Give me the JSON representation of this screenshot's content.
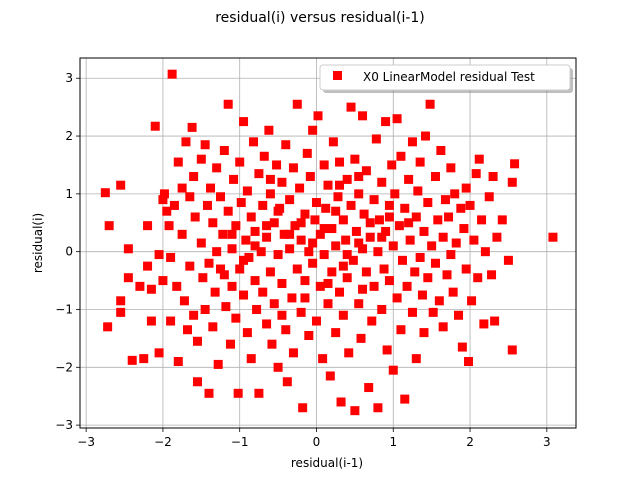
{
  "chart_data": {
    "type": "scatter",
    "title": "residual(i) versus residual(i-1)",
    "xlabel": "residual(i-1)",
    "ylabel": "residual(i)",
    "xlim": [
      -3.08,
      3.38
    ],
    "ylim": [
      -3.05,
      3.35
    ],
    "xticks": [
      -3,
      -2,
      -1,
      0,
      1,
      2,
      3
    ],
    "xtick_labels": [
      "−3",
      "−2",
      "−1",
      "0",
      "1",
      "2",
      "3"
    ],
    "yticks": [
      -3,
      -2,
      -1,
      0,
      1,
      2,
      3
    ],
    "ytick_labels": [
      "−3",
      "−2",
      "−1",
      "0",
      "1",
      "2",
      "3"
    ],
    "grid": true,
    "legend_position": "upper right",
    "marker": "square",
    "series": [
      {
        "name": "X0 LinearModel residual Test",
        "color": "#ff0000",
        "points": [
          [
            -2.75,
            1.02
          ],
          [
            -2.7,
            0.45
          ],
          [
            -2.72,
            -1.3
          ],
          [
            -2.55,
            -1.05
          ],
          [
            -2.55,
            -0.85
          ],
          [
            -2.55,
            1.15
          ],
          [
            -2.45,
            0.05
          ],
          [
            -2.45,
            -0.45
          ],
          [
            -2.4,
            -1.88
          ],
          [
            -2.3,
            -0.6
          ],
          [
            -2.25,
            -1.85
          ],
          [
            -2.2,
            0.45
          ],
          [
            -2.2,
            -0.25
          ],
          [
            -2.15,
            -0.65
          ],
          [
            -2.15,
            -1.2
          ],
          [
            -2.1,
            2.17
          ],
          [
            -2.05,
            -0.05
          ],
          [
            -2.05,
            -1.75
          ],
          [
            -2.0,
            -0.5
          ],
          [
            -2.0,
            0.9
          ],
          [
            -1.98,
            1.0
          ],
          [
            -1.95,
            0.7
          ],
          [
            -1.92,
            0.45
          ],
          [
            -1.9,
            -0.1
          ],
          [
            -1.9,
            -1.2
          ],
          [
            -1.88,
            3.07
          ],
          [
            -1.85,
            0.8
          ],
          [
            -1.82,
            -0.6
          ],
          [
            -1.8,
            1.55
          ],
          [
            -1.8,
            -1.9
          ],
          [
            -1.75,
            1.1
          ],
          [
            -1.75,
            0.3
          ],
          [
            -1.72,
            -0.85
          ],
          [
            -1.7,
            1.9
          ],
          [
            -1.68,
            -1.35
          ],
          [
            -1.65,
            0.95
          ],
          [
            -1.65,
            -0.25
          ],
          [
            -1.62,
            2.15
          ],
          [
            -1.6,
            1.3
          ],
          [
            -1.6,
            -1.1
          ],
          [
            -1.58,
            0.6
          ],
          [
            -1.55,
            -1.55
          ],
          [
            -1.55,
            -2.25
          ],
          [
            -1.5,
            1.6
          ],
          [
            -1.5,
            0.15
          ],
          [
            -1.48,
            -0.45
          ],
          [
            -1.45,
            1.85
          ],
          [
            -1.45,
            -1.0
          ],
          [
            -1.42,
            0.8
          ],
          [
            -1.4,
            -0.2
          ],
          [
            -1.4,
            -2.45
          ],
          [
            -1.38,
            1.1
          ],
          [
            -1.35,
            0.5
          ],
          [
            -1.35,
            -1.3
          ],
          [
            -1.32,
            -0.7
          ],
          [
            -1.3,
            1.45
          ],
          [
            -1.3,
            0.0
          ],
          [
            -1.28,
            -1.95
          ],
          [
            -1.25,
            0.95
          ],
          [
            -1.22,
            0.3
          ],
          [
            -1.2,
            -0.4
          ],
          [
            -1.2,
            1.75
          ],
          [
            -1.18,
            -0.95
          ],
          [
            -1.15,
            2.55
          ],
          [
            -1.15,
            0.7
          ],
          [
            -1.12,
            -1.6
          ],
          [
            -1.1,
            0.05
          ],
          [
            -1.1,
            -0.6
          ],
          [
            -1.08,
            1.25
          ],
          [
            -1.05,
            -1.15
          ],
          [
            -1.05,
            0.45
          ],
          [
            -1.02,
            -2.45
          ],
          [
            -1.0,
            1.55
          ],
          [
            -1.0,
            -0.3
          ],
          [
            -0.98,
            0.85
          ],
          [
            -0.95,
            2.25
          ],
          [
            -0.95,
            -0.75
          ],
          [
            -0.92,
            0.2
          ],
          [
            -0.9,
            -1.4
          ],
          [
            -0.9,
            1.05
          ],
          [
            -0.88,
            -0.1
          ],
          [
            -0.85,
            0.6
          ],
          [
            -0.85,
            -1.85
          ],
          [
            -0.82,
            1.9
          ],
          [
            -0.8,
            -0.5
          ],
          [
            -0.8,
            0.35
          ],
          [
            -0.78,
            -1.0
          ],
          [
            -0.75,
            1.35
          ],
          [
            -0.75,
            -2.45
          ],
          [
            -0.72,
            0.0
          ],
          [
            -0.7,
            0.8
          ],
          [
            -0.7,
            -0.7
          ],
          [
            -0.68,
            1.65
          ],
          [
            -0.65,
            -1.25
          ],
          [
            -0.65,
            0.25
          ],
          [
            -0.62,
            2.1
          ],
          [
            -0.6,
            -0.35
          ],
          [
            -0.6,
            1.0
          ],
          [
            -0.58,
            -1.6
          ],
          [
            -0.55,
            0.5
          ],
          [
            -0.55,
            -0.9
          ],
          [
            -0.52,
            1.5
          ],
          [
            -0.5,
            -0.05
          ],
          [
            -0.5,
            -2.0
          ],
          [
            -0.48,
            0.75
          ],
          [
            -0.45,
            1.2
          ],
          [
            -0.45,
            -0.55
          ],
          [
            -0.42,
            0.3
          ],
          [
            -0.4,
            -1.35
          ],
          [
            -0.4,
            1.85
          ],
          [
            -0.38,
            -2.25
          ],
          [
            -0.35,
            0.05
          ],
          [
            -0.35,
            0.9
          ],
          [
            -0.32,
            -0.8
          ],
          [
            -0.3,
            1.45
          ],
          [
            -0.3,
            -1.75
          ],
          [
            -0.28,
            0.45
          ],
          [
            -0.25,
            -0.3
          ],
          [
            -0.25,
            2.55
          ],
          [
            -0.22,
            1.1
          ],
          [
            -0.2,
            -1.05
          ],
          [
            -0.2,
            0.2
          ],
          [
            -0.18,
            -2.7
          ],
          [
            -0.15,
            0.65
          ],
          [
            -0.15,
            -0.5
          ],
          [
            -0.12,
            1.7
          ],
          [
            -0.1,
            -1.45
          ],
          [
            -0.1,
            0.0
          ],
          [
            -0.08,
            1.3
          ],
          [
            -0.05,
            -0.2
          ],
          [
            -0.05,
            2.1
          ],
          [
            -0.02,
            0.55
          ],
          [
            0.0,
            -1.2
          ],
          [
            0.0,
            0.85
          ],
          [
            0.02,
            2.35
          ],
          [
            0.05,
            -0.6
          ],
          [
            0.05,
            0.3
          ],
          [
            0.08,
            -1.85
          ],
          [
            0.1,
            1.5
          ],
          [
            0.1,
            -0.05
          ],
          [
            0.12,
            0.75
          ],
          [
            0.15,
            -0.9
          ],
          [
            0.15,
            1.15
          ],
          [
            0.18,
            -2.15
          ],
          [
            0.2,
            0.4
          ],
          [
            0.2,
            -0.35
          ],
          [
            0.22,
            1.9
          ],
          [
            0.25,
            -1.4
          ],
          [
            0.25,
            0.1
          ],
          [
            0.28,
            0.95
          ],
          [
            0.3,
            -0.7
          ],
          [
            0.3,
            1.55
          ],
          [
            0.32,
            -2.6
          ],
          [
            0.35,
            0.55
          ],
          [
            0.35,
            -1.1
          ],
          [
            0.38,
            0.2
          ],
          [
            0.4,
            1.25
          ],
          [
            0.4,
            -0.45
          ],
          [
            0.42,
            -1.75
          ],
          [
            0.45,
            0.8
          ],
          [
            0.45,
            2.5
          ],
          [
            0.48,
            -0.15
          ],
          [
            0.5,
            1.6
          ],
          [
            0.5,
            -2.75
          ],
          [
            0.52,
            0.35
          ],
          [
            0.55,
            -0.9
          ],
          [
            0.55,
            1.0
          ],
          [
            0.58,
            -1.5
          ],
          [
            0.6,
            0.05
          ],
          [
            0.6,
            2.35
          ],
          [
            0.62,
            0.65
          ],
          [
            0.65,
            -0.35
          ],
          [
            0.65,
            1.4
          ],
          [
            0.68,
            -2.35
          ],
          [
            0.7,
            0.25
          ],
          [
            0.72,
            -1.2
          ],
          [
            0.75,
            0.9
          ],
          [
            0.75,
            -0.6
          ],
          [
            0.78,
            1.95
          ],
          [
            0.8,
            0.0
          ],
          [
            0.8,
            -2.7
          ],
          [
            0.82,
            0.55
          ],
          [
            0.85,
            -1.0
          ],
          [
            0.85,
            1.2
          ],
          [
            0.88,
            -0.3
          ],
          [
            0.9,
            2.25
          ],
          [
            0.9,
            0.35
          ],
          [
            0.92,
            -1.7
          ],
          [
            0.95,
            0.8
          ],
          [
            0.95,
            -0.5
          ],
          [
            0.98,
            1.5
          ],
          [
            1.0,
            -2.05
          ],
          [
            1.0,
            0.1
          ],
          [
            1.02,
            1.0
          ],
          [
            1.05,
            -0.8
          ],
          [
            1.05,
            2.3
          ],
          [
            1.08,
            0.45
          ],
          [
            1.1,
            -1.35
          ],
          [
            1.1,
            1.65
          ],
          [
            1.12,
            -0.15
          ],
          [
            1.15,
            -2.55
          ],
          [
            1.15,
            0.75
          ],
          [
            1.18,
            -0.6
          ],
          [
            1.2,
            1.25
          ],
          [
            1.22,
            0.2
          ],
          [
            1.25,
            -1.05
          ],
          [
            1.25,
            1.9
          ],
          [
            1.28,
            -0.35
          ],
          [
            1.3,
            0.6
          ],
          [
            1.3,
            -1.85
          ],
          [
            1.32,
            1.05
          ],
          [
            1.35,
            -0.1
          ],
          [
            1.35,
            1.55
          ],
          [
            1.38,
            -0.75
          ],
          [
            1.4,
            0.35
          ],
          [
            1.4,
            -1.4
          ],
          [
            1.42,
            2.0
          ],
          [
            1.45,
            0.85
          ],
          [
            1.45,
            -0.45
          ],
          [
            1.48,
            2.55
          ],
          [
            1.5,
            0.1
          ],
          [
            1.52,
            -1.05
          ],
          [
            1.55,
            1.3
          ],
          [
            1.55,
            -0.2
          ],
          [
            1.58,
            0.55
          ],
          [
            1.6,
            -0.85
          ],
          [
            1.62,
            1.75
          ],
          [
            1.65,
            0.25
          ],
          [
            1.65,
            -1.3
          ],
          [
            1.68,
            0.9
          ],
          [
            1.7,
            -0.4
          ],
          [
            1.72,
            0.6
          ],
          [
            1.75,
            -0.05
          ],
          [
            1.75,
            1.45
          ],
          [
            1.78,
            -0.7
          ],
          [
            1.8,
            1.0
          ],
          [
            1.82,
            0.15
          ],
          [
            1.85,
            -1.1
          ],
          [
            1.88,
            0.75
          ],
          [
            1.9,
            -1.65
          ],
          [
            1.92,
            0.4
          ],
          [
            1.95,
            1.1
          ],
          [
            1.95,
            -0.3
          ],
          [
            1.98,
            -1.9
          ],
          [
            2.0,
            0.8
          ],
          [
            2.02,
            -0.85
          ],
          [
            2.05,
            0.2
          ],
          [
            2.08,
            1.35
          ],
          [
            2.1,
            -0.45
          ],
          [
            2.12,
            1.6
          ],
          [
            2.15,
            0.55
          ],
          [
            2.18,
            -1.25
          ],
          [
            2.2,
            0.0
          ],
          [
            2.25,
            0.95
          ],
          [
            2.28,
            -0.4
          ],
          [
            2.3,
            1.3
          ],
          [
            2.32,
            -1.2
          ],
          [
            2.35,
            0.25
          ],
          [
            2.42,
            0.55
          ],
          [
            2.5,
            -0.15
          ],
          [
            2.55,
            1.2
          ],
          [
            2.55,
            -1.7
          ],
          [
            2.58,
            1.52
          ],
          [
            3.08,
            0.25
          ],
          [
            -0.05,
            0.15
          ],
          [
            0.1,
            0.4
          ],
          [
            0.25,
            0.7
          ],
          [
            0.4,
            -0.05
          ],
          [
            0.55,
            0.15
          ],
          [
            0.7,
            0.5
          ],
          [
            0.85,
            0.25
          ],
          [
            -0.2,
            0.5
          ],
          [
            -0.35,
            0.3
          ],
          [
            -0.5,
            0.7
          ],
          [
            -0.65,
            0.45
          ],
          [
            -0.8,
            0.1
          ],
          [
            -0.95,
            -0.15
          ],
          [
            -1.1,
            0.3
          ],
          [
            -0.15,
            -0.8
          ],
          [
            0.15,
            -0.55
          ],
          [
            0.35,
            -0.25
          ],
          [
            0.6,
            -0.65
          ],
          [
            0.95,
            0.6
          ],
          [
            1.2,
            0.5
          ],
          [
            -1.25,
            -0.3
          ],
          [
            -0.45,
            -1.1
          ],
          [
            0.3,
            1.15
          ],
          [
            0.55,
            1.3
          ],
          [
            -0.6,
            1.25
          ]
        ]
      }
    ]
  }
}
